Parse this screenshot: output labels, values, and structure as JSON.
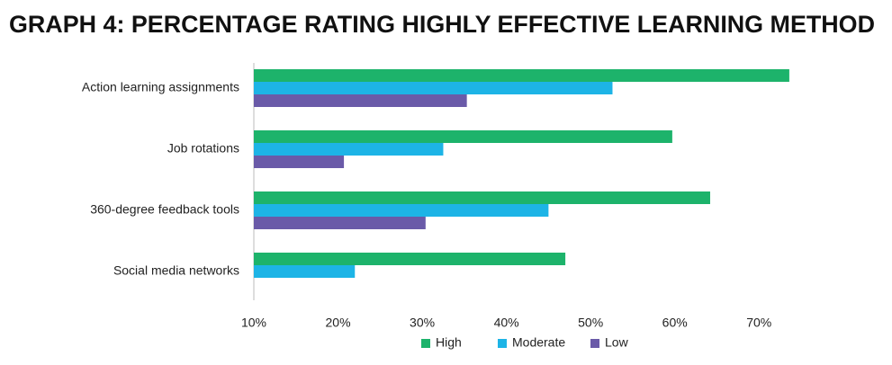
{
  "chart_data": {
    "type": "hbar",
    "title": "GRAPH 4: PERCENTAGE RATING HIGHLY EFFECTIVE LEARNING METHOD",
    "categories": [
      "Action learning assignments",
      "Job rotations",
      "360-degree feedback tools",
      "Social media networks"
    ],
    "series": [
      {
        "name": "High",
        "color": "#1db36b",
        "values": [
          73.6,
          59.7,
          64.2,
          47
        ]
      },
      {
        "name": "Moderate",
        "color": "#1db4e6",
        "values": [
          52.6,
          32.5,
          45,
          22
        ]
      },
      {
        "name": "Low",
        "color": "#6a5aa8",
        "values": [
          35.3,
          20.7,
          30.4,
          null
        ]
      }
    ],
    "xlim": [
      10,
      75
    ],
    "xticks": [
      {
        "value": 10,
        "label": "10%"
      },
      {
        "value": 20,
        "label": "20%"
      },
      {
        "value": 30,
        "label": "30%"
      },
      {
        "value": 40,
        "label": "40%"
      },
      {
        "value": 50,
        "label": "50%"
      },
      {
        "value": 60,
        "label": "60%"
      },
      {
        "value": 70,
        "label": "70%"
      }
    ],
    "grid": false,
    "legend": "bottom"
  }
}
